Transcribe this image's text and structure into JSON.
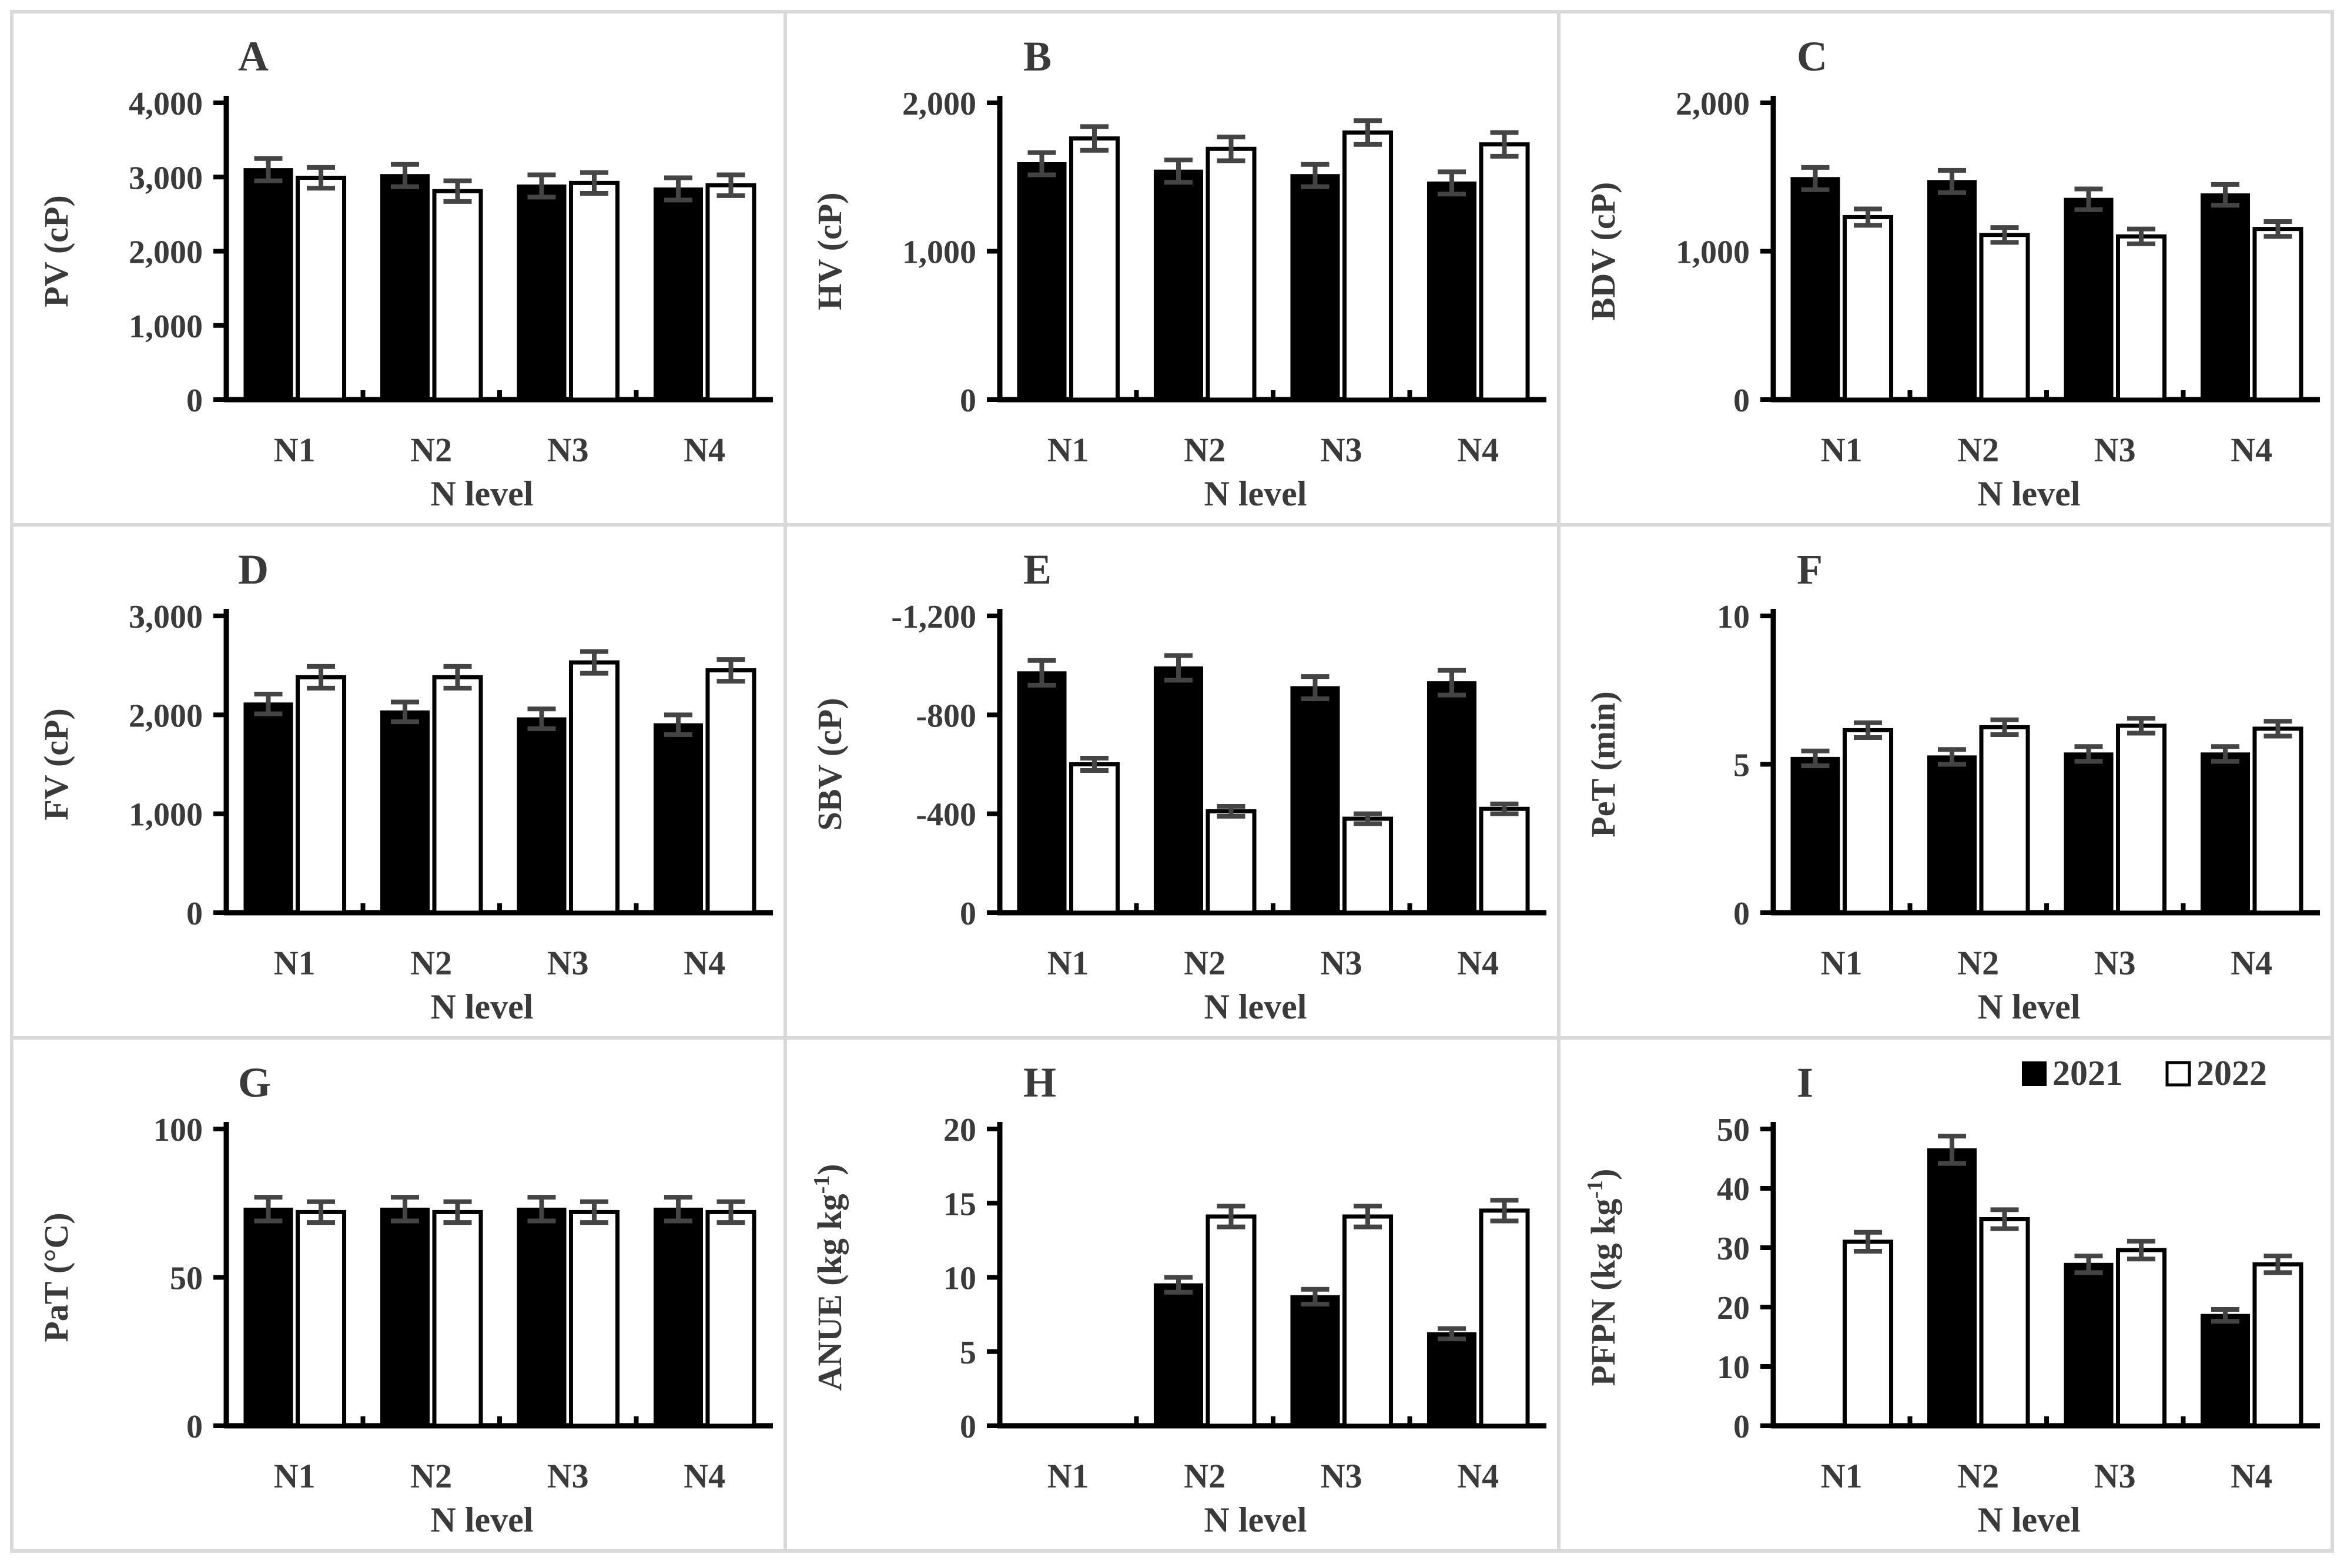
{
  "chart_data": [
    {
      "panel": "A",
      "type": "bar",
      "ylabel": "PV (cP)",
      "xlabel": "N level",
      "categories": [
        "N1",
        "N2",
        "N3",
        "N4"
      ],
      "ylim": [
        0,
        4000
      ],
      "yticks": [
        0,
        1000,
        2000,
        3000,
        4000
      ],
      "ytick_labels": [
        "0",
        "1,000",
        "2,000",
        "3,000",
        "4,000"
      ],
      "series": [
        {
          "name": "2021",
          "values": [
            3100,
            3020,
            2880,
            2840
          ],
          "errors": [
            150,
            150,
            150,
            150
          ]
        },
        {
          "name": "2022",
          "values": [
            2990,
            2810,
            2920,
            2890
          ],
          "errors": [
            140,
            140,
            140,
            140
          ]
        }
      ]
    },
    {
      "panel": "B",
      "type": "bar",
      "ylabel": "HV (cP)",
      "xlabel": "N level",
      "categories": [
        "N1",
        "N2",
        "N3",
        "N4"
      ],
      "ylim": [
        0,
        2000
      ],
      "yticks": [
        0,
        1000,
        2000
      ],
      "ytick_labels": [
        "0",
        "1,000",
        "2,000"
      ],
      "series": [
        {
          "name": "2021",
          "values": [
            1590,
            1540,
            1510,
            1460
          ],
          "errors": [
            75,
            75,
            75,
            75
          ]
        },
        {
          "name": "2022",
          "values": [
            1760,
            1690,
            1800,
            1720
          ],
          "errors": [
            80,
            80,
            80,
            80
          ]
        }
      ]
    },
    {
      "panel": "C",
      "type": "bar",
      "ylabel": "BDV (cP)",
      "xlabel": "N level",
      "categories": [
        "N1",
        "N2",
        "N3",
        "N4"
      ],
      "ylim": [
        0,
        2000
      ],
      "yticks": [
        0,
        1000,
        2000
      ],
      "ytick_labels": [
        "0",
        "1,000",
        "2,000"
      ],
      "series": [
        {
          "name": "2021",
          "values": [
            1490,
            1470,
            1350,
            1380
          ],
          "errors": [
            75,
            75,
            70,
            70
          ]
        },
        {
          "name": "2022",
          "values": [
            1230,
            1110,
            1100,
            1150
          ],
          "errors": [
            55,
            50,
            50,
            50
          ]
        }
      ]
    },
    {
      "panel": "D",
      "type": "bar",
      "ylabel": "FV (cP)",
      "xlabel": "N level",
      "categories": [
        "N1",
        "N2",
        "N3",
        "N4"
      ],
      "ylim": [
        0,
        3000
      ],
      "yticks": [
        0,
        1000,
        2000,
        3000
      ],
      "ytick_labels": [
        "0",
        "1,000",
        "2,000",
        "3,000"
      ],
      "series": [
        {
          "name": "2021",
          "values": [
            2110,
            2030,
            1960,
            1900
          ],
          "errors": [
            100,
            100,
            100,
            100
          ]
        },
        {
          "name": "2022",
          "values": [
            2380,
            2380,
            2530,
            2450
          ],
          "errors": [
            110,
            110,
            110,
            110
          ]
        }
      ]
    },
    {
      "panel": "E",
      "type": "bar",
      "ylabel": "SBV (cP)",
      "xlabel": "N level",
      "categories": [
        "N1",
        "N2",
        "N3",
        "N4"
      ],
      "ylim": [
        0,
        -1200
      ],
      "yticks": [
        0,
        -400,
        -800,
        -1200
      ],
      "ytick_labels": [
        "0",
        "-400",
        "-800",
        "-1,200"
      ],
      "series": [
        {
          "name": "2021",
          "values": [
            -970,
            -990,
            -910,
            -930
          ],
          "errors": [
            50,
            50,
            45,
            50
          ]
        },
        {
          "name": "2022",
          "values": [
            -600,
            -410,
            -380,
            -420
          ],
          "errors": [
            25,
            20,
            20,
            20
          ]
        }
      ]
    },
    {
      "panel": "F",
      "type": "bar",
      "ylabel": "PeT (min)",
      "xlabel": "N level",
      "categories": [
        "N1",
        "N2",
        "N3",
        "N4"
      ],
      "ylim": [
        0,
        10
      ],
      "yticks": [
        0,
        5,
        10
      ],
      "ytick_labels": [
        "0",
        "5",
        "10"
      ],
      "series": [
        {
          "name": "2021",
          "values": [
            5.2,
            5.25,
            5.35,
            5.35
          ],
          "errors": [
            0.25,
            0.25,
            0.25,
            0.25
          ]
        },
        {
          "name": "2022",
          "values": [
            6.15,
            6.25,
            6.3,
            6.2
          ],
          "errors": [
            0.25,
            0.25,
            0.25,
            0.25
          ]
        }
      ]
    },
    {
      "panel": "G",
      "type": "bar",
      "ylabel": "PaT (°C)",
      "xlabel": "N level",
      "categories": [
        "N1",
        "N2",
        "N3",
        "N4"
      ],
      "ylim": [
        0,
        100
      ],
      "yticks": [
        0,
        50,
        100
      ],
      "ytick_labels": [
        "0",
        "50",
        "100"
      ],
      "series": [
        {
          "name": "2021",
          "values": [
            73,
            73,
            73,
            73
          ],
          "errors": [
            4,
            4,
            4,
            4
          ]
        },
        {
          "name": "2022",
          "values": [
            72,
            72,
            72,
            72
          ],
          "errors": [
            3.5,
            3.5,
            3.5,
            3.5
          ]
        }
      ]
    },
    {
      "panel": "H",
      "type": "bar",
      "ylabel": "ANUE (kg kg",
      "ylabel_sup": "-1",
      "ylabel_end": ")",
      "xlabel": "N level",
      "categories": [
        "N1",
        "N2",
        "N3",
        "N4"
      ],
      "ylim": [
        0,
        20
      ],
      "yticks": [
        0,
        5,
        10,
        15,
        20
      ],
      "ytick_labels": [
        "0",
        "5",
        "10",
        "15",
        "20"
      ],
      "series": [
        {
          "name": "2021",
          "values": [
            0,
            9.5,
            8.7,
            6.2
          ],
          "errors": [
            0,
            0.5,
            0.5,
            0.35
          ]
        },
        {
          "name": "2022",
          "values": [
            0,
            14.1,
            14.1,
            14.5
          ],
          "errors": [
            0,
            0.7,
            0.7,
            0.7
          ]
        }
      ]
    },
    {
      "panel": "I",
      "type": "bar",
      "ylabel": "PFPN (kg kg",
      "ylabel_sup": "-1",
      "ylabel_end": ")",
      "xlabel": "N level",
      "categories": [
        "N1",
        "N2",
        "N3",
        "N4"
      ],
      "ylim": [
        0,
        50
      ],
      "yticks": [
        0,
        10,
        20,
        30,
        40,
        50
      ],
      "ytick_labels": [
        "0",
        "10",
        "20",
        "30",
        "40",
        "50"
      ],
      "series": [
        {
          "name": "2021",
          "values": [
            0,
            46.5,
            27.2,
            18.6
          ],
          "errors": [
            0,
            2.3,
            1.4,
            1.0
          ]
        },
        {
          "name": "2022",
          "values": [
            31,
            34.8,
            29.6,
            27.2
          ],
          "errors": [
            1.6,
            1.6,
            1.5,
            1.4
          ]
        }
      ],
      "legend": {
        "position": "top-right",
        "entries": [
          "2021",
          "2022"
        ]
      }
    }
  ]
}
